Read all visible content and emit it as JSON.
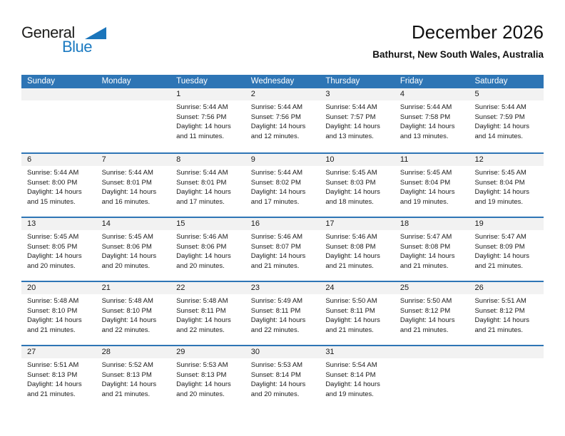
{
  "logo": {
    "word1": "General",
    "word2": "Blue"
  },
  "header": {
    "title": "December 2026",
    "subtitle": "Bathurst, New South Wales, Australia"
  },
  "colors": {
    "header_blue": "#2e75b5",
    "row_separator_blue": "#2e75b5",
    "day_strip_gray": "#f2f2f2",
    "logo_blue": "#1b7ac1",
    "text": "#1a1a1a"
  },
  "calendar": {
    "weekdays": [
      "Sunday",
      "Monday",
      "Tuesday",
      "Wednesday",
      "Thursday",
      "Friday",
      "Saturday"
    ],
    "weeks": [
      [
        null,
        null,
        {
          "day": "1",
          "lines": [
            "Sunrise: 5:44 AM",
            "Sunset: 7:56 PM",
            "Daylight: 14 hours",
            "and 11 minutes."
          ]
        },
        {
          "day": "2",
          "lines": [
            "Sunrise: 5:44 AM",
            "Sunset: 7:56 PM",
            "Daylight: 14 hours",
            "and 12 minutes."
          ]
        },
        {
          "day": "3",
          "lines": [
            "Sunrise: 5:44 AM",
            "Sunset: 7:57 PM",
            "Daylight: 14 hours",
            "and 13 minutes."
          ]
        },
        {
          "day": "4",
          "lines": [
            "Sunrise: 5:44 AM",
            "Sunset: 7:58 PM",
            "Daylight: 14 hours",
            "and 13 minutes."
          ]
        },
        {
          "day": "5",
          "lines": [
            "Sunrise: 5:44 AM",
            "Sunset: 7:59 PM",
            "Daylight: 14 hours",
            "and 14 minutes."
          ]
        }
      ],
      [
        {
          "day": "6",
          "lines": [
            "Sunrise: 5:44 AM",
            "Sunset: 8:00 PM",
            "Daylight: 14 hours",
            "and 15 minutes."
          ]
        },
        {
          "day": "7",
          "lines": [
            "Sunrise: 5:44 AM",
            "Sunset: 8:01 PM",
            "Daylight: 14 hours",
            "and 16 minutes."
          ]
        },
        {
          "day": "8",
          "lines": [
            "Sunrise: 5:44 AM",
            "Sunset: 8:01 PM",
            "Daylight: 14 hours",
            "and 17 minutes."
          ]
        },
        {
          "day": "9",
          "lines": [
            "Sunrise: 5:44 AM",
            "Sunset: 8:02 PM",
            "Daylight: 14 hours",
            "and 17 minutes."
          ]
        },
        {
          "day": "10",
          "lines": [
            "Sunrise: 5:45 AM",
            "Sunset: 8:03 PM",
            "Daylight: 14 hours",
            "and 18 minutes."
          ]
        },
        {
          "day": "11",
          "lines": [
            "Sunrise: 5:45 AM",
            "Sunset: 8:04 PM",
            "Daylight: 14 hours",
            "and 19 minutes."
          ]
        },
        {
          "day": "12",
          "lines": [
            "Sunrise: 5:45 AM",
            "Sunset: 8:04 PM",
            "Daylight: 14 hours",
            "and 19 minutes."
          ]
        }
      ],
      [
        {
          "day": "13",
          "lines": [
            "Sunrise: 5:45 AM",
            "Sunset: 8:05 PM",
            "Daylight: 14 hours",
            "and 20 minutes."
          ]
        },
        {
          "day": "14",
          "lines": [
            "Sunrise: 5:45 AM",
            "Sunset: 8:06 PM",
            "Daylight: 14 hours",
            "and 20 minutes."
          ]
        },
        {
          "day": "15",
          "lines": [
            "Sunrise: 5:46 AM",
            "Sunset: 8:06 PM",
            "Daylight: 14 hours",
            "and 20 minutes."
          ]
        },
        {
          "day": "16",
          "lines": [
            "Sunrise: 5:46 AM",
            "Sunset: 8:07 PM",
            "Daylight: 14 hours",
            "and 21 minutes."
          ]
        },
        {
          "day": "17",
          "lines": [
            "Sunrise: 5:46 AM",
            "Sunset: 8:08 PM",
            "Daylight: 14 hours",
            "and 21 minutes."
          ]
        },
        {
          "day": "18",
          "lines": [
            "Sunrise: 5:47 AM",
            "Sunset: 8:08 PM",
            "Daylight: 14 hours",
            "and 21 minutes."
          ]
        },
        {
          "day": "19",
          "lines": [
            "Sunrise: 5:47 AM",
            "Sunset: 8:09 PM",
            "Daylight: 14 hours",
            "and 21 minutes."
          ]
        }
      ],
      [
        {
          "day": "20",
          "lines": [
            "Sunrise: 5:48 AM",
            "Sunset: 8:10 PM",
            "Daylight: 14 hours",
            "and 21 minutes."
          ]
        },
        {
          "day": "21",
          "lines": [
            "Sunrise: 5:48 AM",
            "Sunset: 8:10 PM",
            "Daylight: 14 hours",
            "and 22 minutes."
          ]
        },
        {
          "day": "22",
          "lines": [
            "Sunrise: 5:48 AM",
            "Sunset: 8:11 PM",
            "Daylight: 14 hours",
            "and 22 minutes."
          ]
        },
        {
          "day": "23",
          "lines": [
            "Sunrise: 5:49 AM",
            "Sunset: 8:11 PM",
            "Daylight: 14 hours",
            "and 22 minutes."
          ]
        },
        {
          "day": "24",
          "lines": [
            "Sunrise: 5:50 AM",
            "Sunset: 8:11 PM",
            "Daylight: 14 hours",
            "and 21 minutes."
          ]
        },
        {
          "day": "25",
          "lines": [
            "Sunrise: 5:50 AM",
            "Sunset: 8:12 PM",
            "Daylight: 14 hours",
            "and 21 minutes."
          ]
        },
        {
          "day": "26",
          "lines": [
            "Sunrise: 5:51 AM",
            "Sunset: 8:12 PM",
            "Daylight: 14 hours",
            "and 21 minutes."
          ]
        }
      ],
      [
        {
          "day": "27",
          "lines": [
            "Sunrise: 5:51 AM",
            "Sunset: 8:13 PM",
            "Daylight: 14 hours",
            "and 21 minutes."
          ]
        },
        {
          "day": "28",
          "lines": [
            "Sunrise: 5:52 AM",
            "Sunset: 8:13 PM",
            "Daylight: 14 hours",
            "and 21 minutes."
          ]
        },
        {
          "day": "29",
          "lines": [
            "Sunrise: 5:53 AM",
            "Sunset: 8:13 PM",
            "Daylight: 14 hours",
            "and 20 minutes."
          ]
        },
        {
          "day": "30",
          "lines": [
            "Sunrise: 5:53 AM",
            "Sunset: 8:14 PM",
            "Daylight: 14 hours",
            "and 20 minutes."
          ]
        },
        {
          "day": "31",
          "lines": [
            "Sunrise: 5:54 AM",
            "Sunset: 8:14 PM",
            "Daylight: 14 hours",
            "and 19 minutes."
          ]
        },
        null,
        null
      ]
    ]
  }
}
